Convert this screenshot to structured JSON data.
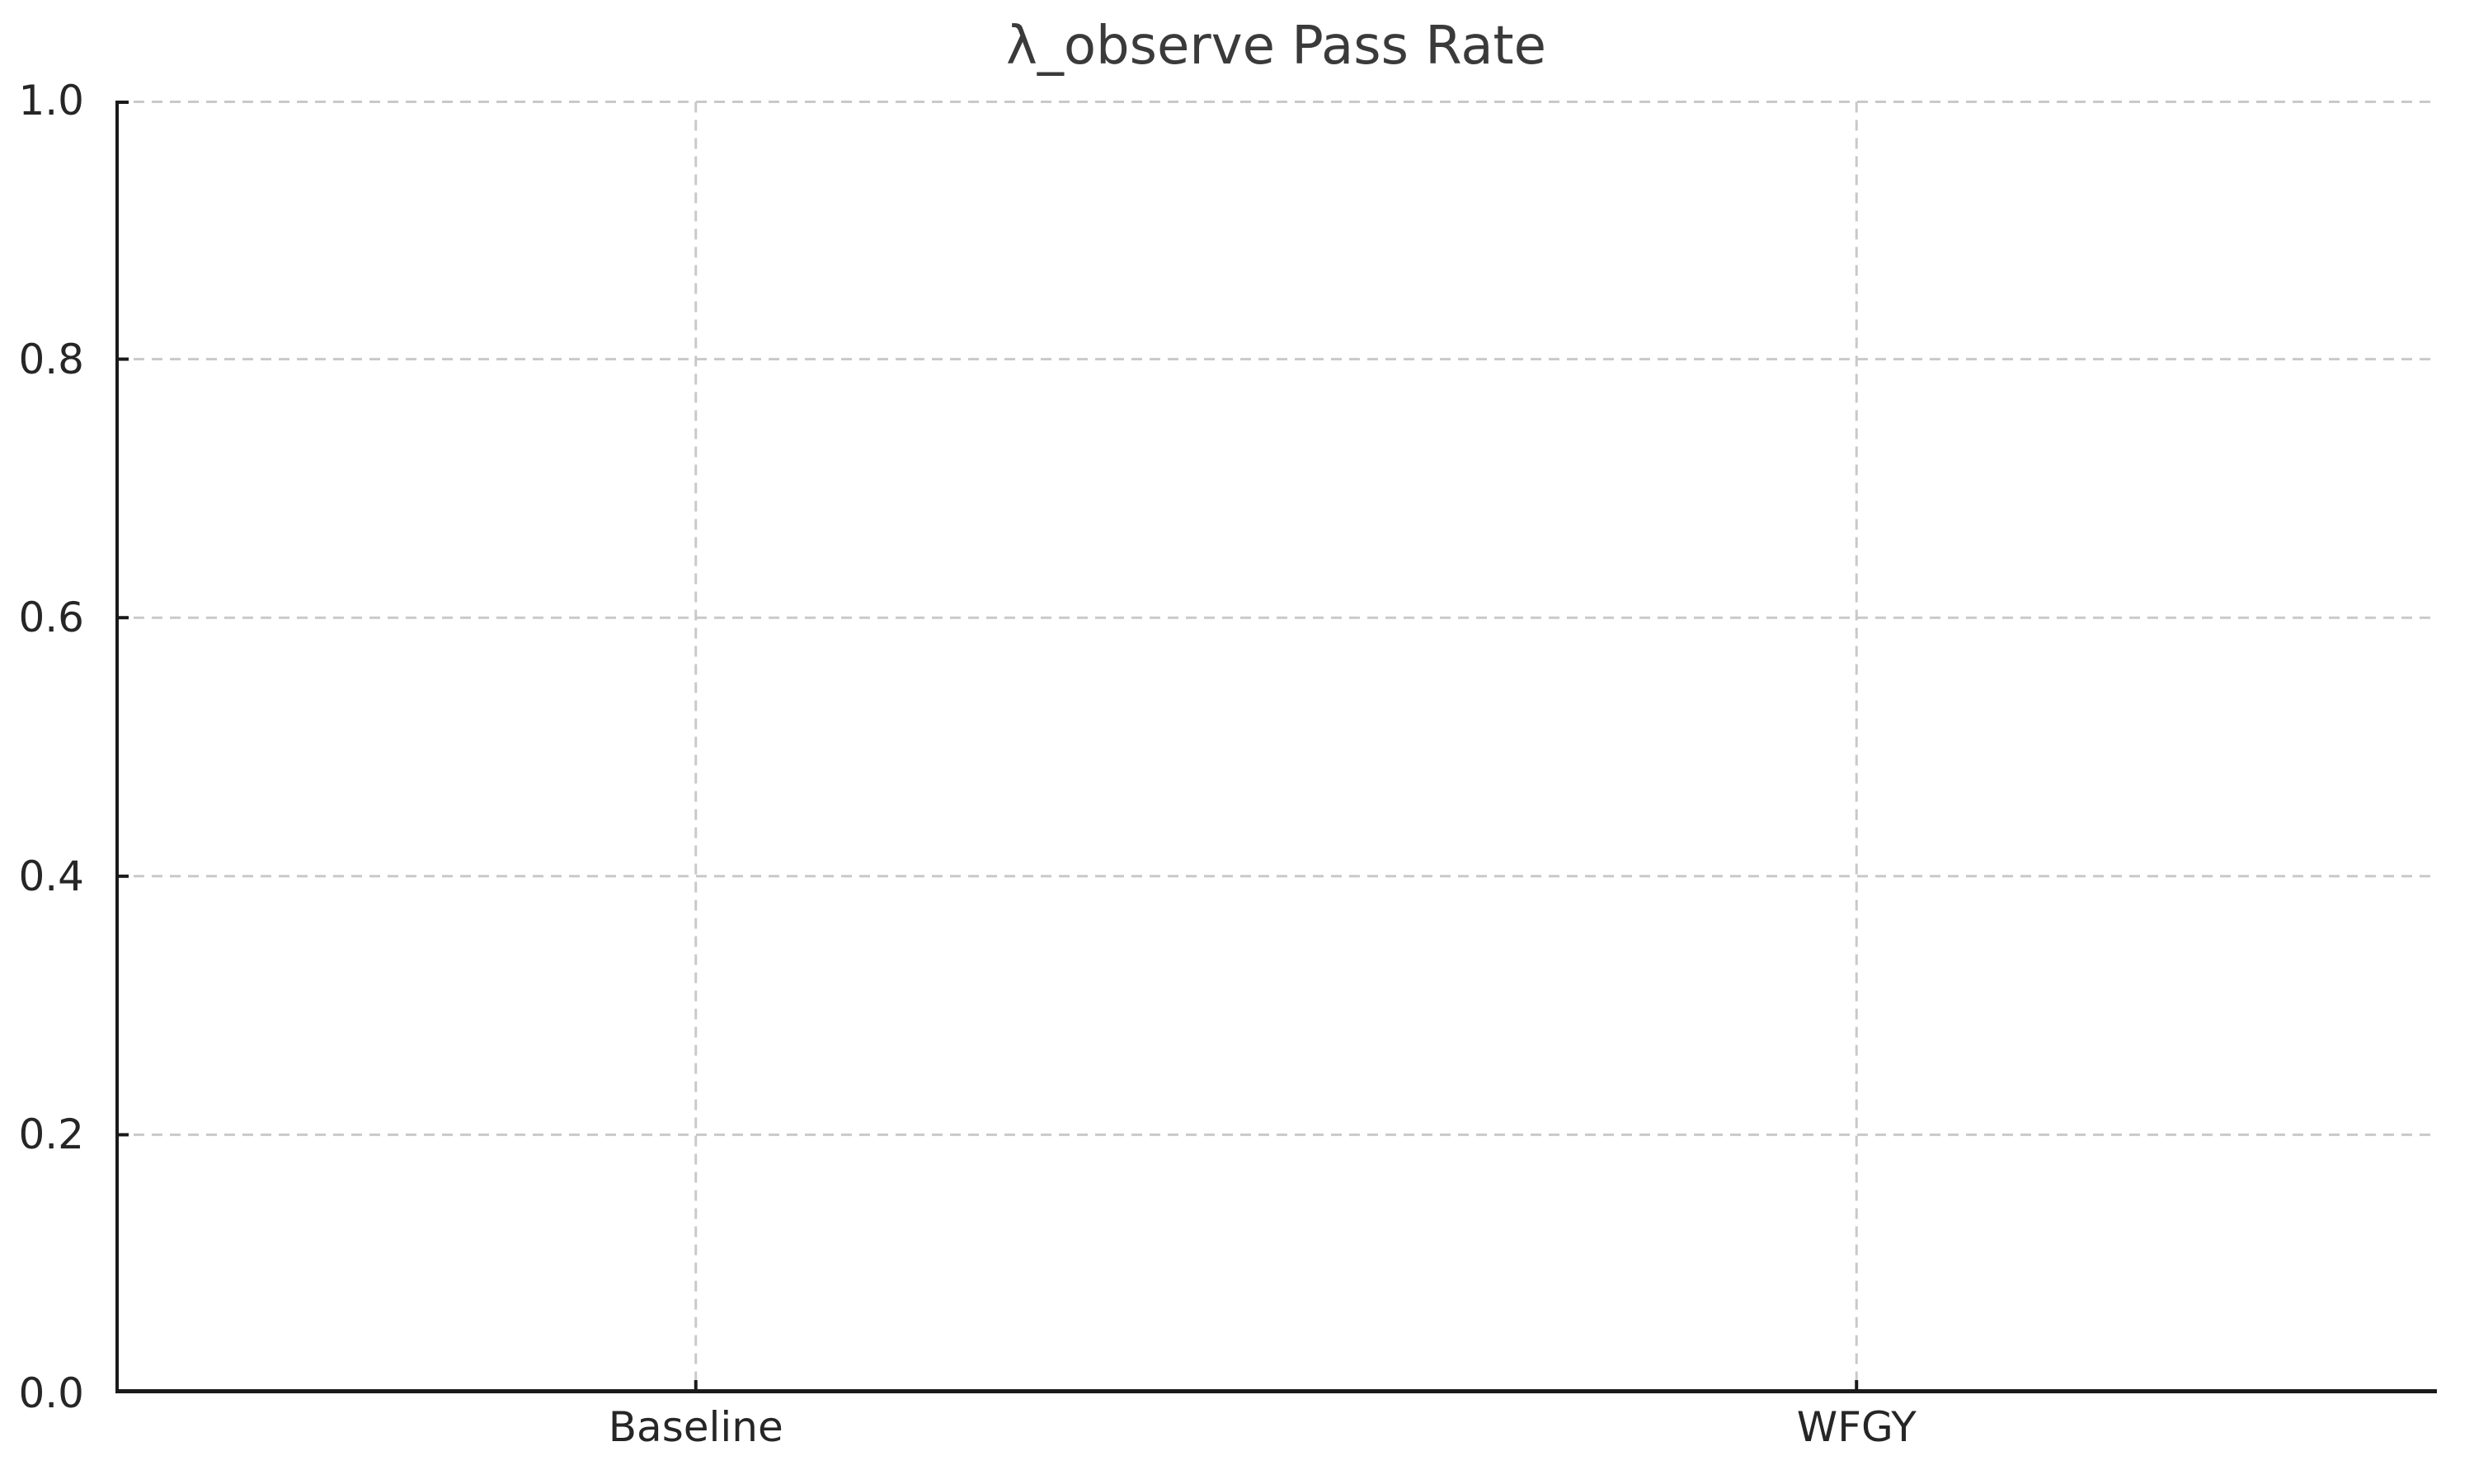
{
  "figure": {
    "title": "λ_observe Pass Rate"
  },
  "chart_data": {
    "type": "bar",
    "title": "λ_observe Pass Rate",
    "categories": [
      "Baseline",
      "WFGY"
    ],
    "values": [
      0.0,
      0.0
    ],
    "xlabel": "",
    "ylabel": "",
    "ylim": [
      0.0,
      1.0
    ],
    "yticks": [
      0.0,
      0.2,
      0.4,
      0.6,
      0.8,
      1.0
    ],
    "ytick_labels": [
      "0.0",
      "0.2",
      "0.4",
      "0.6",
      "0.8",
      "1.0"
    ],
    "grid": true,
    "grid_style": "dashed",
    "legend": false,
    "colors": {
      "background": "#ffffff",
      "axis": "#1a1a1a",
      "grid": "#c9c9c9",
      "tick_text": "#262626",
      "title_text": "#3a3a3a"
    }
  }
}
